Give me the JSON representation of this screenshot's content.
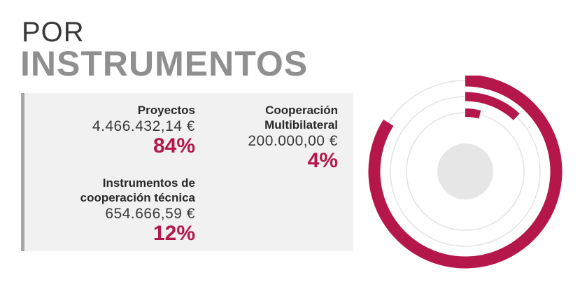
{
  "header": {
    "title_line1": "POR",
    "title_line2": "INSTRUMENTOS"
  },
  "colors": {
    "accent": "#b5174a",
    "track": "#e3e3e3",
    "center": "#e6e6e6",
    "panel": "#f1f1f1"
  },
  "chart_data": {
    "type": "radial_bar",
    "currency": "€",
    "series": [
      {
        "label_lines": [
          "Proyectos"
        ],
        "amount": "4.466.432,14 €",
        "value": 4466432.14,
        "percent": 84,
        "percent_label": "84%"
      },
      {
        "label_lines": [
          "Instrumentos de",
          "cooperación técnica"
        ],
        "amount": "654.666,59 €",
        "value": 654666.59,
        "percent": 12,
        "percent_label": "12%"
      },
      {
        "label_lines": [
          "Cooperación",
          "Multibilateral"
        ],
        "amount": "200.000,00 €",
        "value": 200000.0,
        "percent": 4,
        "percent_label": "4%"
      }
    ]
  }
}
